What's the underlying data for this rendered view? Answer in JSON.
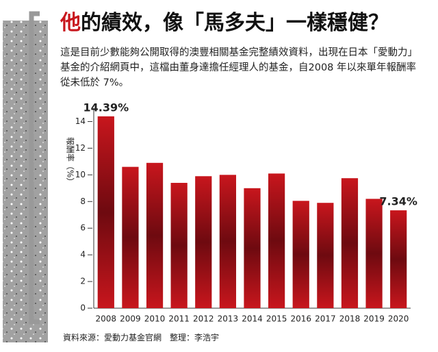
{
  "chart_data": {
    "type": "bar",
    "title": [
      "他",
      "的績效，像「馬多夫」一樣穩健？"
    ],
    "subtitle": "這是目前少數能夠公開取得的澳豐相關基金完整績效資料，出現在日本「愛動力」基金的介紹網頁中，這檔由董身達擔任經理人的基金，自2008 年以來單年報酬率從未低於 7%。",
    "y_label": "報酬率（%）",
    "source": "資料來源：愛動力基金官網　整理：李浩宇",
    "categories": [
      "2008",
      "2009",
      "2010",
      "2011",
      "2012",
      "2013",
      "2014",
      "2015",
      "2016",
      "2017",
      "2018",
      "2019",
      "2020"
    ],
    "values": [
      14.39,
      10.6,
      10.9,
      9.4,
      9.9,
      10.0,
      9.0,
      10.1,
      8.05,
      7.9,
      9.75,
      8.2,
      7.34
    ],
    "value_labels": [
      "14.39%",
      null,
      null,
      null,
      null,
      null,
      null,
      null,
      null,
      null,
      null,
      null,
      "7.34%"
    ],
    "color": "#c8161d",
    "ylim": [
      0,
      15
    ],
    "yticks": [
      0,
      2,
      4,
      6,
      8,
      10,
      12,
      14
    ]
  }
}
